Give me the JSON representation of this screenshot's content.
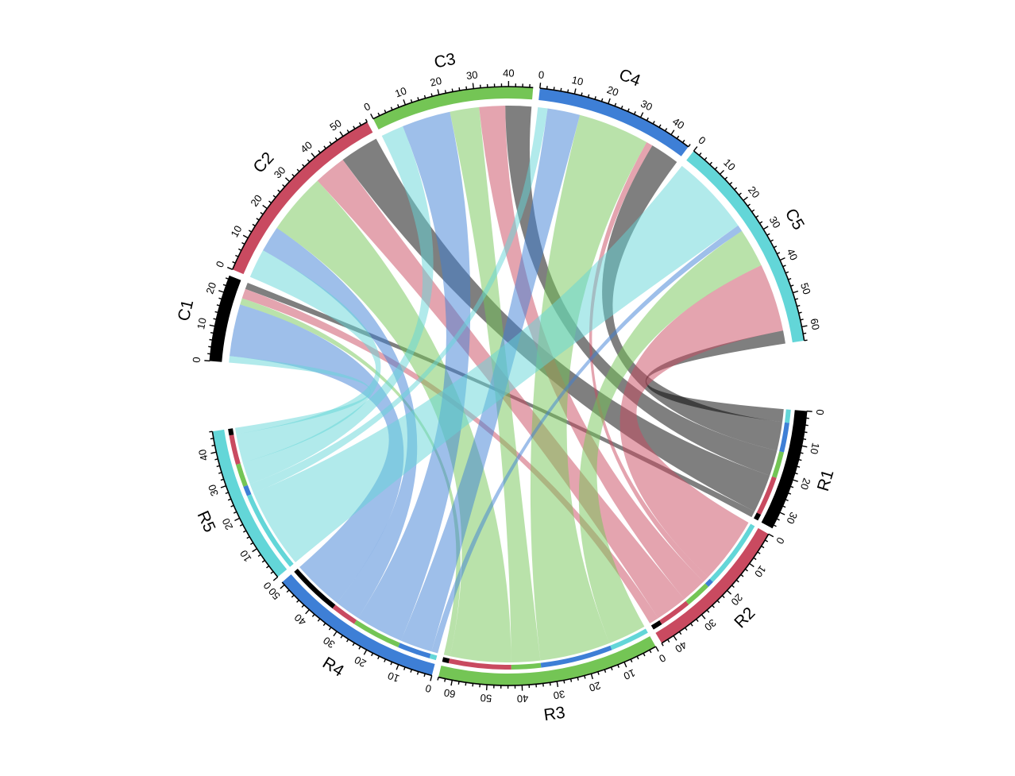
{
  "chart_data": {
    "type": "chord",
    "title": "",
    "rows": [
      "R1",
      "R2",
      "R3",
      "R4",
      "R5"
    ],
    "columns": [
      "C1",
      "C2",
      "C3",
      "C4",
      "C5"
    ],
    "matrix": [
      [
        2,
        12,
        8,
        9,
        4
      ],
      [
        3,
        10,
        8,
        2,
        21
      ],
      [
        2,
        19,
        9,
        22,
        12
      ],
      [
        16,
        8,
        15,
        10,
        2
      ],
      [
        2,
        9,
        7,
        3,
        25
      ]
    ],
    "matrix_orientation": "rows are R sectors, columns are C sectors; values are link widths",
    "sector_totals": {
      "C1": 25,
      "C2": 58,
      "C3": 47,
      "C4": 46,
      "C5": 64,
      "R1": 35,
      "R2": 44,
      "R3": 64,
      "R4": 51,
      "R5": 46
    },
    "axis_ticks": {
      "C1": [
        0,
        10,
        20
      ],
      "C2": [
        0,
        10,
        20,
        30,
        40,
        50
      ],
      "C3": [
        0,
        10,
        20,
        30,
        40
      ],
      "C4": [
        0,
        10,
        20,
        30,
        40
      ],
      "C5": [
        0,
        10,
        20,
        30,
        40,
        50,
        60
      ],
      "R1": [
        0,
        10,
        20,
        30
      ],
      "R2": [
        0,
        10,
        20,
        30,
        40
      ],
      "R3": [
        0,
        10,
        20,
        30,
        40,
        50,
        60
      ],
      "R4": [
        0,
        10,
        20,
        30,
        40,
        50
      ],
      "R5": [
        0,
        10,
        20,
        30,
        40
      ]
    },
    "colors": {
      "C1": "#000000",
      "C2": "#C94A60",
      "C3": "#74C555",
      "C4": "#3E7FD6",
      "C5": "#63D6D8",
      "R1": "#000000",
      "R2": "#C94A60",
      "R3": "#74C555",
      "R4": "#3E7FD6",
      "R5": "#63D6D8"
    },
    "link_colors_by_row": {
      "R1": "#000000",
      "R2": "#C94A60",
      "R3": "#74C555",
      "R4": "#3E7FD6",
      "R5": "#63D6D8"
    },
    "link_alpha": 0.5,
    "grid": false,
    "legend": "none"
  }
}
